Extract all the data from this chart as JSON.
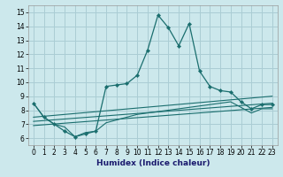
{
  "xlabel": "Humidex (Indice chaleur)",
  "background_color": "#cce8ec",
  "grid_color": "#aacdd4",
  "line_color": "#1a6e6e",
  "xlim": [
    -0.5,
    23.5
  ],
  "ylim": [
    5.5,
    15.5
  ],
  "xticks": [
    0,
    1,
    2,
    3,
    4,
    5,
    6,
    7,
    8,
    9,
    10,
    11,
    12,
    13,
    14,
    15,
    16,
    17,
    18,
    19,
    20,
    21,
    22,
    23
  ],
  "yticks": [
    6,
    7,
    8,
    9,
    10,
    11,
    12,
    13,
    14,
    15
  ],
  "lines": [
    {
      "x": [
        0,
        1,
        2,
        3,
        4,
        5,
        6,
        7,
        8,
        9,
        10,
        11,
        12,
        13,
        14,
        15,
        16,
        17,
        18,
        19,
        20,
        21,
        22,
        23
      ],
      "y": [
        8.5,
        7.5,
        7.0,
        6.5,
        6.1,
        6.3,
        6.5,
        9.7,
        9.8,
        9.9,
        10.5,
        12.3,
        14.8,
        13.9,
        12.6,
        14.2,
        10.8,
        9.7,
        9.4,
        9.3,
        8.6,
        8.1,
        8.4,
        8.4
      ],
      "markers": true
    },
    {
      "x": [
        0,
        23
      ],
      "y": [
        7.5,
        9.0
      ],
      "markers": false
    },
    {
      "x": [
        0,
        23
      ],
      "y": [
        7.2,
        8.5
      ],
      "markers": false
    },
    {
      "x": [
        0,
        23
      ],
      "y": [
        6.9,
        8.2
      ],
      "markers": false
    },
    {
      "x": [
        0,
        1,
        2,
        3,
        4,
        5,
        6,
        7,
        8,
        9,
        10,
        11,
        12,
        13,
        14,
        15,
        16,
        17,
        18,
        19,
        20,
        21,
        22,
        23
      ],
      "y": [
        8.5,
        7.5,
        7.0,
        6.8,
        6.1,
        6.4,
        6.5,
        7.1,
        7.3,
        7.5,
        7.7,
        7.8,
        7.9,
        8.0,
        8.1,
        8.2,
        8.3,
        8.4,
        8.5,
        8.6,
        8.2,
        7.8,
        8.1,
        8.1
      ],
      "markers": false
    }
  ]
}
